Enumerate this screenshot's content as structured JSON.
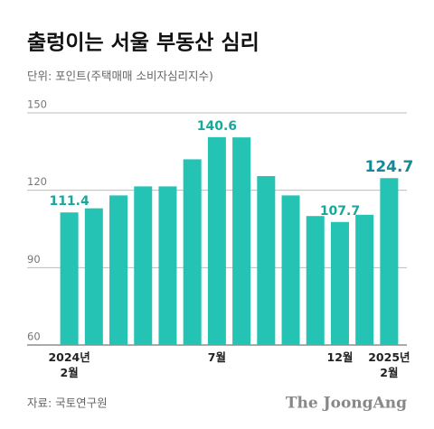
{
  "chart_data": {
    "type": "bar",
    "title": "출렁이는 서울 부동산 심리",
    "subtitle": "단위: 포인트(주택매매 소비자심리지수)",
    "source": "자료: 국토연구원",
    "brand": "The JoongAng",
    "categories": [
      "2024년 2월",
      null,
      null,
      null,
      null,
      null,
      "7월",
      null,
      null,
      null,
      null,
      "12월",
      null,
      "2025년 2월"
    ],
    "values": [
      111.4,
      113,
      118,
      121.5,
      121.5,
      132,
      140.6,
      140.5,
      125.5,
      118,
      110,
      107.7,
      110.5,
      124.7
    ],
    "value_labels": [
      "111.4",
      null,
      null,
      null,
      null,
      null,
      "140.6",
      null,
      null,
      null,
      null,
      "107.7",
      null,
      "124.7"
    ],
    "color": "#25c3b3",
    "ylim": [
      60,
      150
    ],
    "yticks": [
      60,
      90,
      120,
      150
    ],
    "grid": true
  }
}
